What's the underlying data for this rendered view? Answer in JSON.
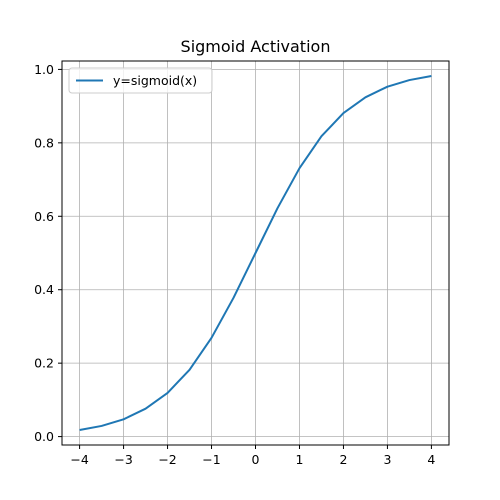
{
  "chart_data": {
    "type": "line",
    "title": "Sigmoid Activation",
    "xlabel": "",
    "ylabel": "",
    "xlim": [
      -4.4,
      4.4
    ],
    "ylim": [
      -0.0229,
      1.0229
    ],
    "grid": true,
    "legend_position": "upper-left",
    "x_ticks": [
      -4,
      -3,
      -2,
      -1,
      0,
      1,
      2,
      3,
      4
    ],
    "x_tick_labels": [
      "−4",
      "−3",
      "−2",
      "−1",
      "0",
      "1",
      "2",
      "3",
      "4"
    ],
    "y_ticks": [
      0.0,
      0.2,
      0.4,
      0.6,
      0.8,
      1.0
    ],
    "y_tick_labels": [
      "0.0",
      "0.2",
      "0.4",
      "0.6",
      "0.8",
      "1.0"
    ],
    "series": [
      {
        "name": "y=sigmoid(x)",
        "color": "#1f77b4",
        "x": [
          -4,
          -3.5,
          -3,
          -2.5,
          -2,
          -1.5,
          -1,
          -0.5,
          0,
          0.5,
          1,
          1.5,
          2,
          2.5,
          3,
          3.5,
          4
        ],
        "y": [
          0.018,
          0.029,
          0.047,
          0.076,
          0.119,
          0.182,
          0.269,
          0.378,
          0.5,
          0.622,
          0.731,
          0.818,
          0.881,
          0.924,
          0.953,
          0.971,
          0.982
        ]
      }
    ]
  }
}
